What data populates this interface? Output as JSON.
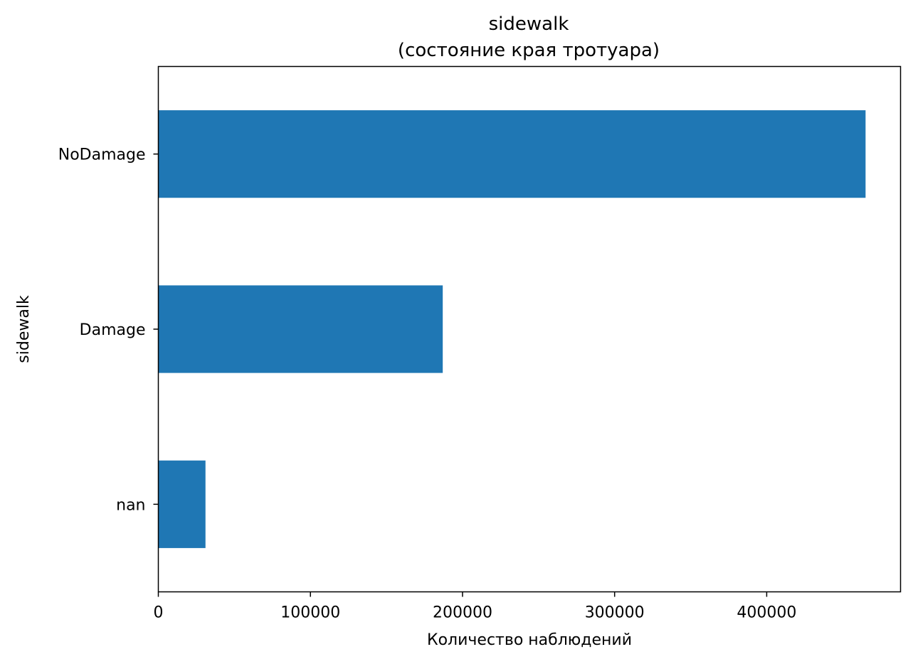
{
  "chart_data": {
    "type": "bar",
    "orientation": "horizontal",
    "title": "sidewalk",
    "subtitle": "(состояние края тротуара)",
    "xlabel": "Количество наблюдений",
    "ylabel": "sidewalk",
    "categories": [
      "NoDamage",
      "Damage",
      "nan"
    ],
    "values": [
      465000,
      187000,
      31000
    ],
    "xlim": [
      0,
      488000
    ],
    "xticks": [
      0,
      100000,
      200000,
      300000,
      400000
    ],
    "xtick_labels": [
      "0",
      "100000",
      "200000",
      "300000",
      "400000"
    ],
    "bar_color": "#1f77b4",
    "grid": false,
    "legend": false
  }
}
